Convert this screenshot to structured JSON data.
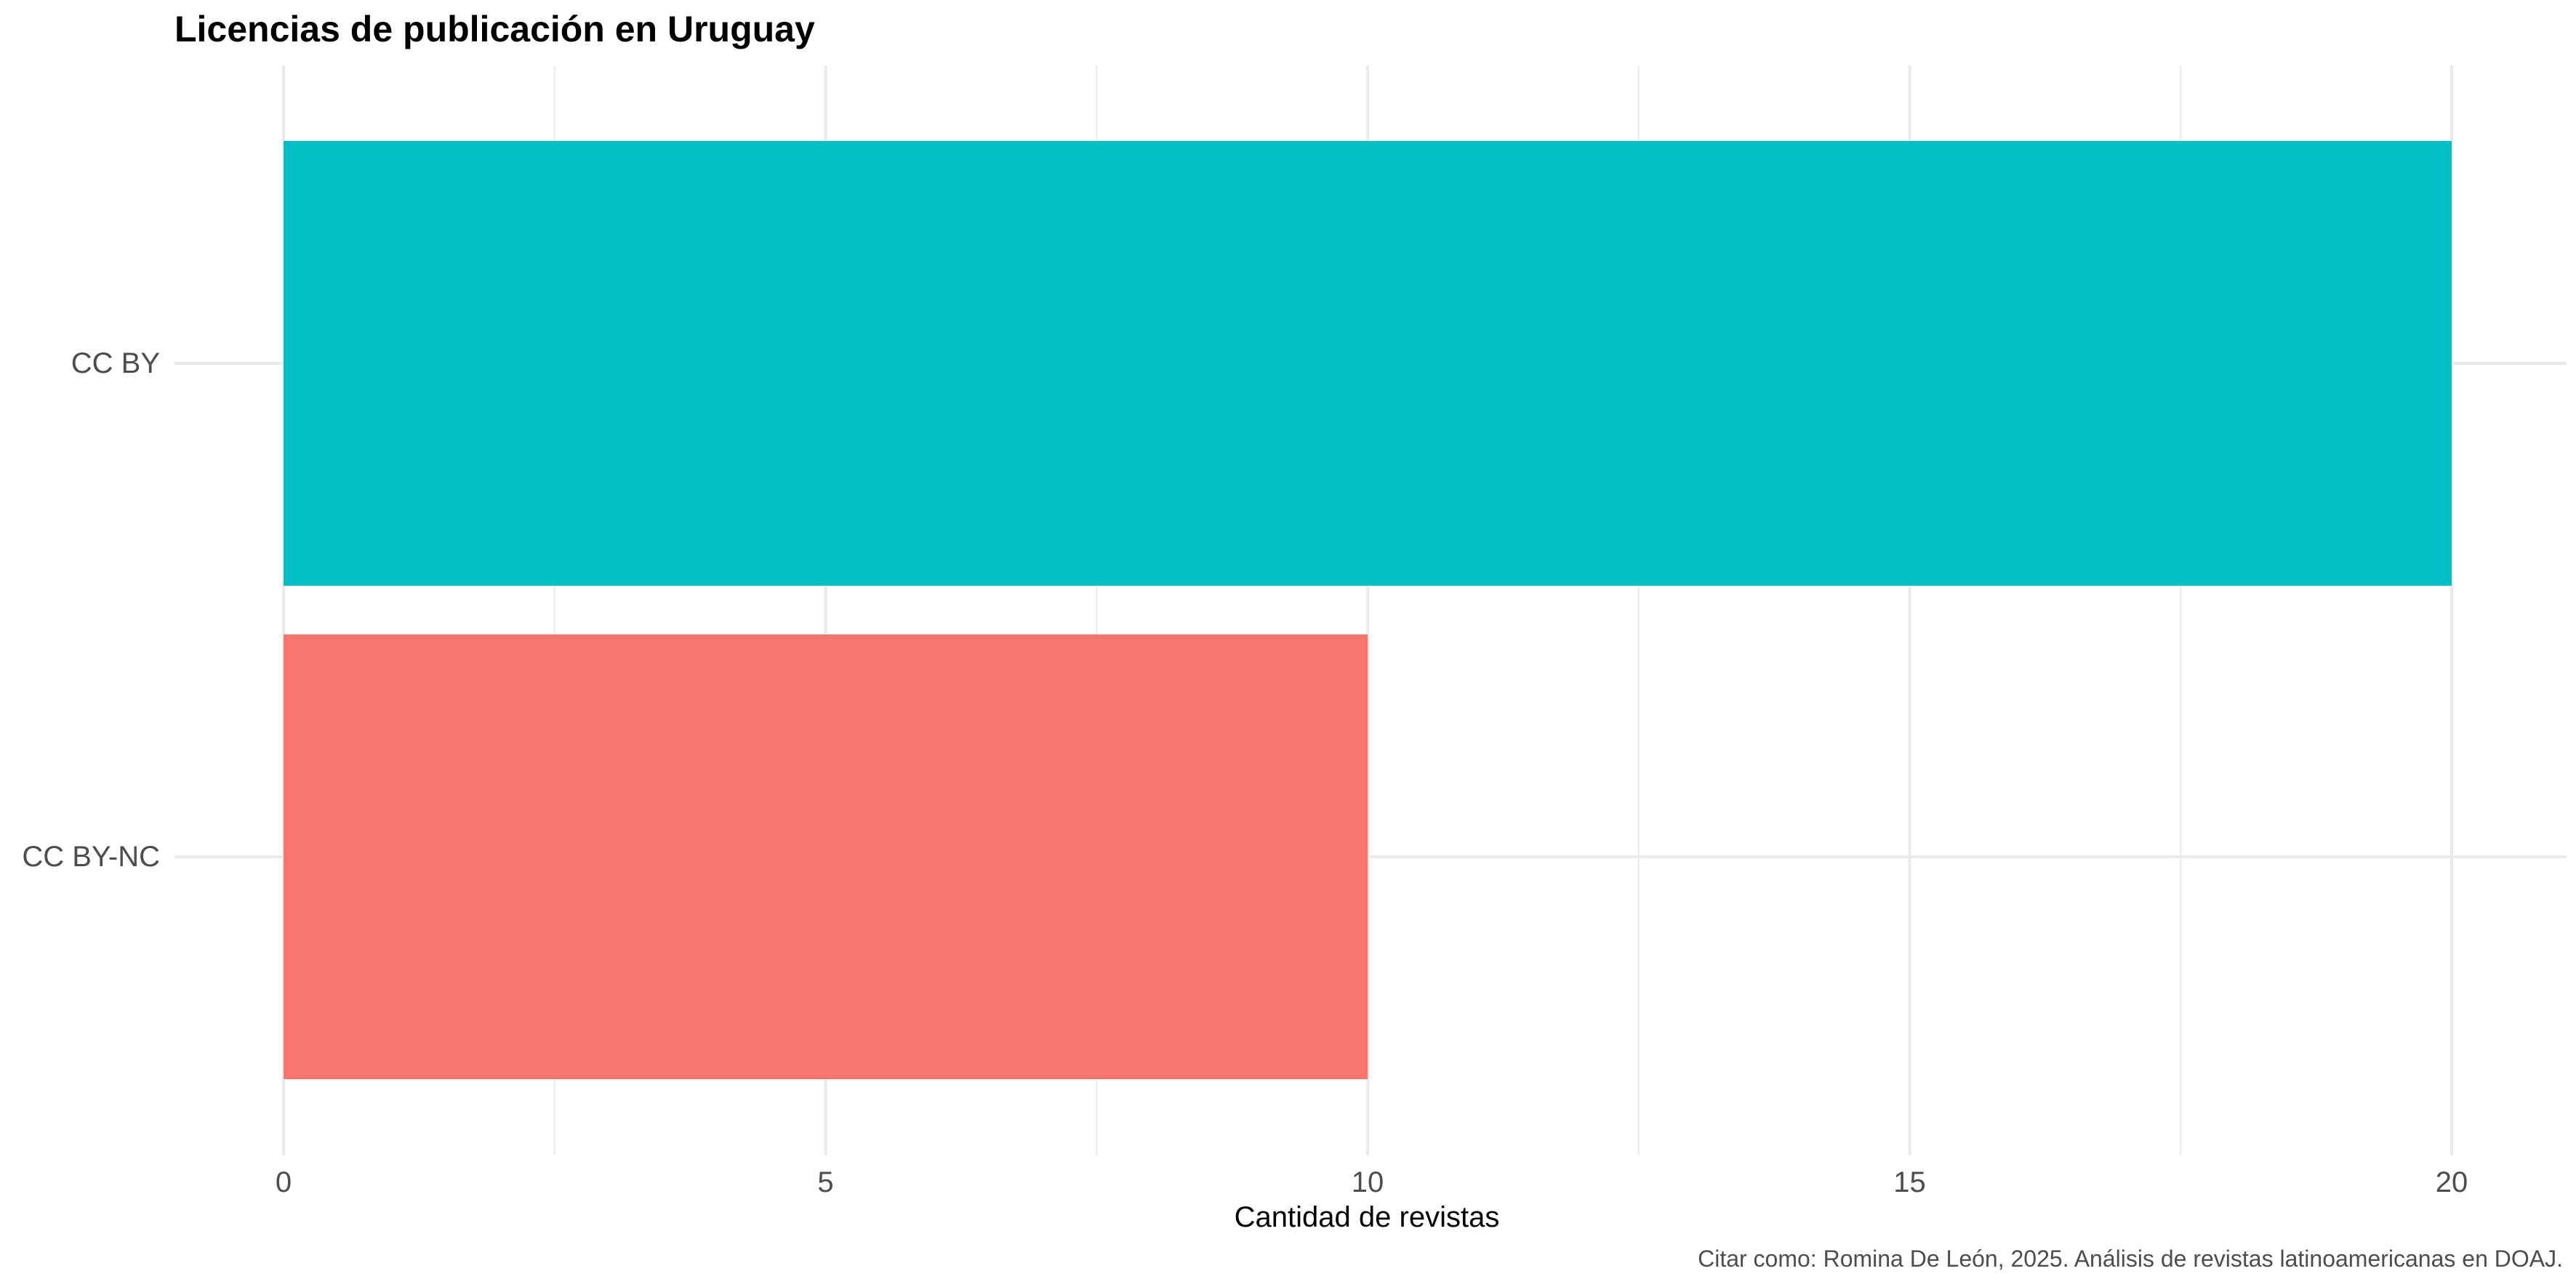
{
  "chart_data": {
    "type": "bar",
    "orientation": "horizontal",
    "title": "Licencias de publicación en Uruguay",
    "xlabel": "Cantidad de revistas",
    "ylabel": "",
    "caption": "Citar como: Romina De León, 2025. Análisis de revistas latinoamericanas en DOAJ.",
    "categories": [
      "CC BY",
      "CC BY-NC"
    ],
    "values": [
      20,
      10
    ],
    "colors": [
      "#00BFC4",
      "#F8766D"
    ],
    "xlim": [
      0,
      20
    ],
    "x_ticks": [
      0,
      5,
      10,
      15,
      20
    ],
    "x_tick_labels": [
      "0",
      "5",
      "10",
      "15",
      "20"
    ],
    "grid": true,
    "legend": "none"
  }
}
